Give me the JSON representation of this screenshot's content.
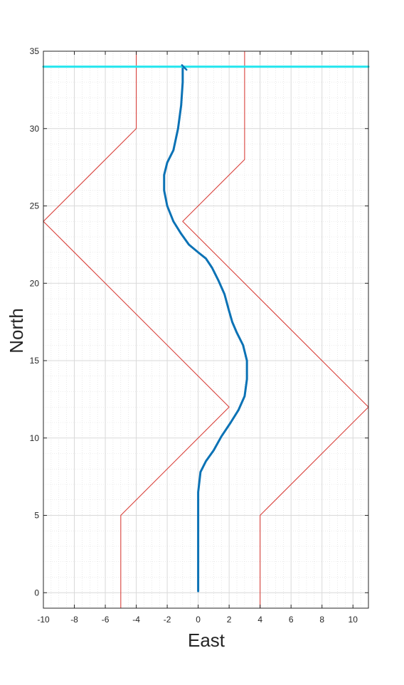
{
  "chart_data": {
    "type": "line",
    "title": "",
    "xlabel": "East",
    "ylabel": "North",
    "xlim": [
      -10,
      11
    ],
    "ylim": [
      -1,
      35
    ],
    "xticks": [
      -10,
      -8,
      -6,
      -4,
      -2,
      0,
      2,
      4,
      6,
      8,
      10
    ],
    "yticks": [
      0,
      5,
      10,
      15,
      20,
      25,
      30,
      35
    ],
    "xtick_labels": [
      "-10",
      "-8",
      "-6",
      "-4",
      "-2",
      "0",
      "2",
      "4",
      "6",
      "8",
      "10"
    ],
    "ytick_labels": [
      "0",
      "5",
      "10",
      "15",
      "20",
      "25",
      "30",
      "35"
    ],
    "grid": true,
    "minor_grid": true,
    "colors": {
      "boundary": "#d9413b",
      "trajectory": "#0b72b5",
      "finish_line": "#21e5ee",
      "grid": "#d9d9d9",
      "axis": "#262626"
    },
    "series": [
      {
        "role": "left-boundary",
        "points": [
          [
            -5,
            -1
          ],
          [
            -5,
            5
          ],
          [
            2,
            12
          ],
          [
            -10,
            24
          ],
          [
            -4,
            30
          ],
          [
            -4,
            35
          ]
        ]
      },
      {
        "role": "right-boundary",
        "points": [
          [
            4,
            -1
          ],
          [
            4,
            5
          ],
          [
            11,
            12
          ],
          [
            -1,
            24
          ],
          [
            3,
            28
          ],
          [
            3,
            35
          ]
        ]
      },
      {
        "role": "trajectory",
        "points": [
          [
            0,
            0.1
          ],
          [
            0,
            2
          ],
          [
            0,
            4
          ],
          [
            0,
            6.5
          ],
          [
            0.15,
            7.8
          ],
          [
            0.5,
            8.5
          ],
          [
            1,
            9.2
          ],
          [
            1.5,
            10.1
          ],
          [
            2.1,
            11
          ],
          [
            2.6,
            11.8
          ],
          [
            3,
            12.7
          ],
          [
            3.15,
            13.8
          ],
          [
            3.15,
            15
          ],
          [
            2.9,
            16
          ],
          [
            2.5,
            16.8
          ],
          [
            2.2,
            17.5
          ],
          [
            2,
            18.2
          ],
          [
            1.7,
            19.3
          ],
          [
            1.3,
            20.2
          ],
          [
            0.9,
            21
          ],
          [
            0.5,
            21.6
          ],
          [
            0,
            22
          ],
          [
            -0.6,
            22.5
          ],
          [
            -1.1,
            23.2
          ],
          [
            -1.6,
            24
          ],
          [
            -2,
            25
          ],
          [
            -2.2,
            26
          ],
          [
            -2.2,
            27
          ],
          [
            -2,
            27.8
          ],
          [
            -1.6,
            28.6
          ],
          [
            -1.3,
            30
          ],
          [
            -1.1,
            31.5
          ],
          [
            -1,
            33
          ],
          [
            -1,
            34
          ]
        ]
      },
      {
        "role": "finish-line",
        "points": [
          [
            -10,
            34
          ],
          [
            11,
            34
          ]
        ]
      },
      {
        "role": "trajectory-end-marker",
        "points": [
          [
            -1.05,
            34.1
          ],
          [
            -0.75,
            33.8
          ]
        ]
      }
    ]
  }
}
